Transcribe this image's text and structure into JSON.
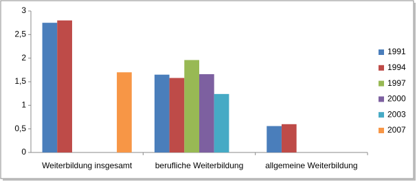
{
  "chart_data": {
    "type": "bar",
    "categories": [
      "Weiterbildung insgesamt",
      "berufliche Weiterbildung",
      "allgemeine Weiterbildung"
    ],
    "series": [
      {
        "name": "1991",
        "color": "#4a7ebb",
        "values": [
          2.75,
          1.65,
          0.56
        ]
      },
      {
        "name": "1994",
        "color": "#be4b48",
        "values": [
          2.8,
          1.58,
          0.6
        ]
      },
      {
        "name": "1997",
        "color": "#98b954",
        "values": [
          null,
          1.96,
          null
        ]
      },
      {
        "name": "2000",
        "color": "#7d60a0",
        "values": [
          null,
          1.66,
          null
        ]
      },
      {
        "name": "2003",
        "color": "#46aac5",
        "values": [
          null,
          1.24,
          null
        ]
      },
      {
        "name": "2007",
        "color": "#f79646",
        "values": [
          1.7,
          null,
          null
        ]
      }
    ],
    "ylim": [
      0,
      3
    ],
    "yticks": [
      0,
      {
        "value": 0.5,
        "label": "0,5"
      },
      1,
      {
        "value": 1.5,
        "label": "1,5"
      },
      2,
      {
        "value": 2.5,
        "label": "2,5"
      },
      3
    ],
    "legend": "right"
  }
}
